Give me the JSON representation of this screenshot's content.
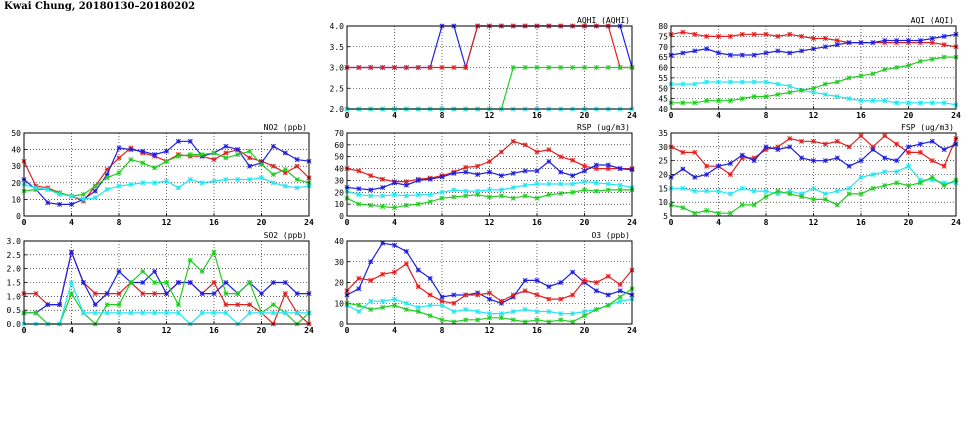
{
  "page": {
    "title": "Kwai Chung, 20180130–20180202"
  },
  "chart_data": [
    {
      "id": "aqhi",
      "type": "line",
      "title": "AQHI (AQHI)",
      "x": [
        0,
        1,
        2,
        3,
        4,
        5,
        6,
        7,
        8,
        9,
        10,
        11,
        12,
        13,
        14,
        15,
        16,
        17,
        18,
        19,
        20,
        21,
        22,
        23,
        24
      ],
      "xticks": [
        0,
        4,
        8,
        12,
        16,
        20,
        24
      ],
      "yticks": [
        "2.0",
        "2.5",
        "3.0",
        "3.5",
        "4.0"
      ],
      "ylim": [
        2,
        4
      ],
      "grid": true,
      "legend": "none",
      "series": [
        {
          "color": "#1f1fe0",
          "values": [
            3,
            3,
            3,
            3,
            3,
            3,
            3,
            3,
            4,
            4,
            3,
            4,
            4,
            4,
            4,
            4,
            4,
            4,
            4,
            4,
            4,
            4,
            4,
            4,
            3
          ]
        },
        {
          "color": "#e01f1f",
          "values": [
            3,
            3,
            3,
            3,
            3,
            3,
            3,
            3,
            3,
            3,
            3,
            4,
            4,
            4,
            4,
            4,
            4,
            4,
            4,
            4,
            4,
            4,
            4,
            3,
            3
          ]
        },
        {
          "color": "#22cc22",
          "values": [
            2,
            2,
            2,
            2,
            2,
            2,
            2,
            2,
            2,
            2,
            2,
            2,
            2,
            2,
            3,
            3,
            3,
            3,
            3,
            3,
            3,
            3,
            3,
            3,
            3
          ]
        },
        {
          "color": "#22e6f0",
          "values": [
            2,
            2,
            2,
            2,
            2,
            2,
            2,
            2,
            2,
            2,
            2,
            2,
            2,
            2,
            2,
            2,
            2,
            2,
            2,
            2,
            2,
            2,
            2,
            2,
            2
          ]
        }
      ]
    },
    {
      "id": "aqi",
      "type": "line",
      "title": "AQI (AQI)",
      "x": [
        0,
        1,
        2,
        3,
        4,
        5,
        6,
        7,
        8,
        9,
        10,
        11,
        12,
        13,
        14,
        15,
        16,
        17,
        18,
        19,
        20,
        21,
        22,
        23,
        24
      ],
      "xticks": [
        0,
        4,
        8,
        12,
        16,
        20,
        24
      ],
      "yticks": [
        "40",
        "45",
        "50",
        "55",
        "60",
        "65",
        "70",
        "75",
        "80"
      ],
      "ylim": [
        40,
        80
      ],
      "grid": true,
      "legend": "none",
      "series": [
        {
          "color": "#e01f1f",
          "values": [
            76,
            77,
            76,
            75,
            75,
            75,
            76,
            76,
            76,
            75,
            76,
            75,
            74,
            74,
            73,
            72,
            72,
            72,
            72,
            72,
            72,
            72,
            72,
            71,
            70
          ]
        },
        {
          "color": "#1f1fe0",
          "values": [
            66,
            67,
            68,
            69,
            67,
            66,
            66,
            66,
            67,
            68,
            67,
            68,
            69,
            70,
            71,
            72,
            72,
            72,
            73,
            73,
            73,
            73,
            74,
            75,
            76
          ]
        },
        {
          "color": "#22e6f0",
          "values": [
            52,
            52,
            52,
            53,
            53,
            53,
            53,
            53,
            53,
            52,
            51,
            49,
            48,
            47,
            46,
            45,
            44,
            44,
            44,
            43,
            43,
            43,
            43,
            43,
            42
          ]
        },
        {
          "color": "#22cc22",
          "values": [
            43,
            43,
            43,
            44,
            44,
            44,
            45,
            46,
            46,
            47,
            48,
            49,
            50,
            52,
            53,
            55,
            56,
            57,
            59,
            60,
            61,
            63,
            64,
            65,
            65
          ]
        }
      ]
    },
    {
      "id": "no2",
      "type": "line",
      "title": "NO2 (ppb)",
      "x": [
        0,
        1,
        2,
        3,
        4,
        5,
        6,
        7,
        8,
        9,
        10,
        11,
        12,
        13,
        14,
        15,
        16,
        17,
        18,
        19,
        20,
        21,
        22,
        23,
        24
      ],
      "xticks": [
        0,
        4,
        8,
        12,
        16,
        20,
        24
      ],
      "yticks": [
        "0",
        "10",
        "20",
        "30",
        "40",
        "50"
      ],
      "ylim": [
        0,
        50
      ],
      "grid": true,
      "legend": "none",
      "series": [
        {
          "color": "#e01f1f",
          "values": [
            33,
            18,
            17,
            14,
            12,
            9,
            18,
            28,
            35,
            41,
            38,
            36,
            33,
            37,
            36,
            36,
            34,
            38,
            40,
            35,
            33,
            30,
            26,
            30,
            23
          ]
        },
        {
          "color": "#1f1fe0",
          "values": [
            22,
            16,
            8,
            7,
            7,
            10,
            15,
            25,
            41,
            40,
            39,
            37,
            39,
            45,
            45,
            36,
            38,
            42,
            40,
            30,
            32,
            42,
            38,
            34,
            33
          ]
        },
        {
          "color": "#22cc22",
          "values": [
            15,
            16,
            16,
            14,
            12,
            13,
            18,
            23,
            26,
            34,
            32,
            29,
            33,
            36,
            37,
            37,
            38,
            35,
            37,
            39,
            31,
            25,
            28,
            22,
            20
          ]
        },
        {
          "color": "#22e6f0",
          "values": [
            19,
            17,
            16,
            13,
            12,
            10,
            11,
            16,
            18,
            19,
            20,
            20,
            21,
            17,
            22,
            20,
            21,
            22,
            22,
            22,
            23,
            20,
            18,
            17,
            18
          ]
        }
      ]
    },
    {
      "id": "rsp",
      "type": "line",
      "title": "RSP (ug/m3)",
      "x": [
        0,
        1,
        2,
        3,
        4,
        5,
        6,
        7,
        8,
        9,
        10,
        11,
        12,
        13,
        14,
        15,
        16,
        17,
        18,
        19,
        20,
        21,
        22,
        23,
        24
      ],
      "xticks": [
        0,
        4,
        8,
        12,
        16,
        20,
        24
      ],
      "yticks": [
        "0",
        "10",
        "20",
        "30",
        "40",
        "50",
        "60",
        "70"
      ],
      "ylim": [
        0,
        70
      ],
      "grid": true,
      "legend": "none",
      "series": [
        {
          "color": "#e01f1f",
          "values": [
            40,
            38,
            34,
            31,
            29,
            29,
            31,
            32,
            34,
            37,
            41,
            42,
            46,
            54,
            63,
            60,
            54,
            56,
            50,
            47,
            42,
            40,
            40,
            40,
            40
          ]
        },
        {
          "color": "#1f1fe0",
          "values": [
            24,
            23,
            22,
            24,
            28,
            26,
            30,
            31,
            33,
            36,
            37,
            35,
            37,
            34,
            36,
            38,
            38,
            46,
            37,
            34,
            38,
            43,
            43,
            40,
            39
          ]
        },
        {
          "color": "#22e6f0",
          "values": [
            21,
            18,
            17,
            17,
            18,
            17,
            18,
            18,
            20,
            22,
            21,
            21,
            22,
            22,
            24,
            26,
            27,
            27,
            27,
            27,
            29,
            28,
            27,
            26,
            24
          ]
        },
        {
          "color": "#22cc22",
          "values": [
            15,
            10,
            9,
            8,
            7,
            9,
            10,
            12,
            15,
            16,
            17,
            18,
            16,
            17,
            15,
            17,
            15,
            18,
            19,
            20,
            22,
            21,
            22,
            22,
            22
          ]
        }
      ]
    },
    {
      "id": "fsp",
      "type": "line",
      "title": "FSP (ug/m3)",
      "x": [
        0,
        1,
        2,
        3,
        4,
        5,
        6,
        7,
        8,
        9,
        10,
        11,
        12,
        13,
        14,
        15,
        16,
        17,
        18,
        19,
        20,
        21,
        22,
        23,
        24
      ],
      "xticks": [
        0,
        4,
        8,
        12,
        16,
        20,
        24
      ],
      "yticks": [
        "5",
        "10",
        "15",
        "20",
        "25",
        "30",
        "35"
      ],
      "ylim": [
        5,
        35
      ],
      "grid": true,
      "legend": "none",
      "series": [
        {
          "color": "#e01f1f",
          "values": [
            30,
            28,
            28,
            23,
            23,
            20,
            26,
            26,
            29,
            30,
            33,
            32,
            32,
            31,
            32,
            30,
            34,
            30,
            34,
            31,
            28,
            28,
            25,
            23,
            33
          ]
        },
        {
          "color": "#1f1fe0",
          "values": [
            19,
            22,
            19,
            20,
            23,
            24,
            27,
            25,
            30,
            29,
            30,
            26,
            25,
            25,
            26,
            23,
            25,
            29,
            26,
            25,
            30,
            31,
            32,
            29,
            31
          ]
        },
        {
          "color": "#22e6f0",
          "values": [
            15,
            15,
            14,
            14,
            14,
            13,
            15,
            14,
            14,
            13,
            14,
            13,
            15,
            13,
            14,
            15,
            19,
            20,
            21,
            21,
            23,
            18,
            18,
            17,
            17
          ]
        },
        {
          "color": "#22cc22",
          "values": [
            9,
            8,
            6,
            7,
            6,
            6,
            9,
            9,
            12,
            14,
            13,
            12,
            11,
            11,
            9,
            13,
            13,
            15,
            16,
            17,
            16,
            17,
            19,
            16,
            18
          ]
        }
      ]
    },
    {
      "id": "so2",
      "type": "line",
      "title": "SO2 (ppb)",
      "x": [
        0,
        1,
        2,
        3,
        4,
        5,
        6,
        7,
        8,
        9,
        10,
        11,
        12,
        13,
        14,
        15,
        16,
        17,
        18,
        19,
        20,
        21,
        22,
        23,
        24
      ],
      "xticks": [
        0,
        4,
        8,
        12,
        16,
        20,
        24
      ],
      "yticks": [
        "0.0",
        "0.5",
        "1.0",
        "1.5",
        "2.0",
        "2.5",
        "3.0"
      ],
      "ylim": [
        0,
        3
      ],
      "grid": true,
      "legend": "none",
      "series": [
        {
          "color": "#e01f1f",
          "values": [
            1.1,
            1.1,
            0.7,
            0.7,
            2.6,
            1.5,
            1.1,
            1.1,
            1.1,
            1.5,
            1.1,
            1.1,
            1.1,
            1.5,
            1.5,
            1.1,
            1.5,
            0.7,
            0.7,
            0.7,
            0.4,
            0.0,
            1.1,
            0.4,
            0.0
          ]
        },
        {
          "color": "#1f1fe0",
          "values": [
            0.4,
            0.4,
            0.7,
            0.7,
            2.6,
            1.5,
            0.7,
            1.1,
            1.9,
            1.5,
            1.5,
            1.9,
            1.1,
            1.5,
            1.5,
            1.1,
            1.1,
            1.5,
            1.1,
            1.5,
            1.1,
            1.5,
            1.5,
            1.1,
            1.1
          ]
        },
        {
          "color": "#22cc22",
          "values": [
            0.4,
            0.4,
            0.0,
            0.0,
            1.1,
            0.4,
            0.0,
            0.7,
            0.7,
            1.5,
            1.9,
            1.5,
            1.5,
            0.7,
            2.3,
            1.9,
            2.6,
            1.1,
            1.1,
            1.5,
            0.4,
            0.7,
            0.4,
            0.0,
            0.4
          ]
        },
        {
          "color": "#22e6f0",
          "values": [
            0.0,
            0.0,
            0.0,
            0.0,
            1.5,
            0.4,
            0.4,
            0.4,
            0.4,
            0.4,
            0.4,
            0.4,
            0.4,
            0.4,
            0.0,
            0.4,
            0.4,
            0.4,
            0.0,
            0.4,
            0.4,
            0.4,
            0.4,
            0.4,
            0.4
          ]
        }
      ]
    },
    {
      "id": "o3",
      "type": "line",
      "title": "O3 (ppb)",
      "x": [
        0,
        1,
        2,
        3,
        4,
        5,
        6,
        7,
        8,
        9,
        10,
        11,
        12,
        13,
        14,
        15,
        16,
        17,
        18,
        19,
        20,
        21,
        22,
        23,
        24
      ],
      "xticks": [
        0,
        4,
        8,
        12,
        16,
        20,
        24
      ],
      "yticks": [
        "0",
        "10",
        "20",
        "30",
        "40"
      ],
      "ylim": [
        0,
        40
      ],
      "grid": true,
      "legend": "none",
      "series": [
        {
          "color": "#1f1fe0",
          "values": [
            14,
            17,
            30,
            39,
            38,
            35,
            26,
            22,
            13,
            14,
            14,
            15,
            12,
            10,
            13,
            21,
            21,
            18,
            20,
            25,
            20,
            16,
            14,
            16,
            14
          ]
        },
        {
          "color": "#e01f1f",
          "values": [
            16,
            22,
            21,
            24,
            25,
            29,
            18,
            14,
            11,
            10,
            14,
            14,
            15,
            11,
            14,
            16,
            14,
            12,
            12,
            14,
            21,
            20,
            23,
            19,
            26
          ]
        },
        {
          "color": "#22e6f0",
          "values": [
            9,
            6,
            11,
            11,
            12,
            10,
            8,
            9,
            9,
            6,
            7,
            6,
            5,
            5,
            6,
            7,
            6,
            6,
            5,
            5,
            6,
            7,
            9,
            11,
            12
          ]
        },
        {
          "color": "#22cc22",
          "values": [
            10,
            9,
            7,
            8,
            9,
            7,
            6,
            4,
            2,
            1,
            2,
            2,
            3,
            3,
            2,
            1,
            2,
            1,
            2,
            1,
            4,
            7,
            9,
            13,
            17
          ]
        }
      ]
    }
  ]
}
